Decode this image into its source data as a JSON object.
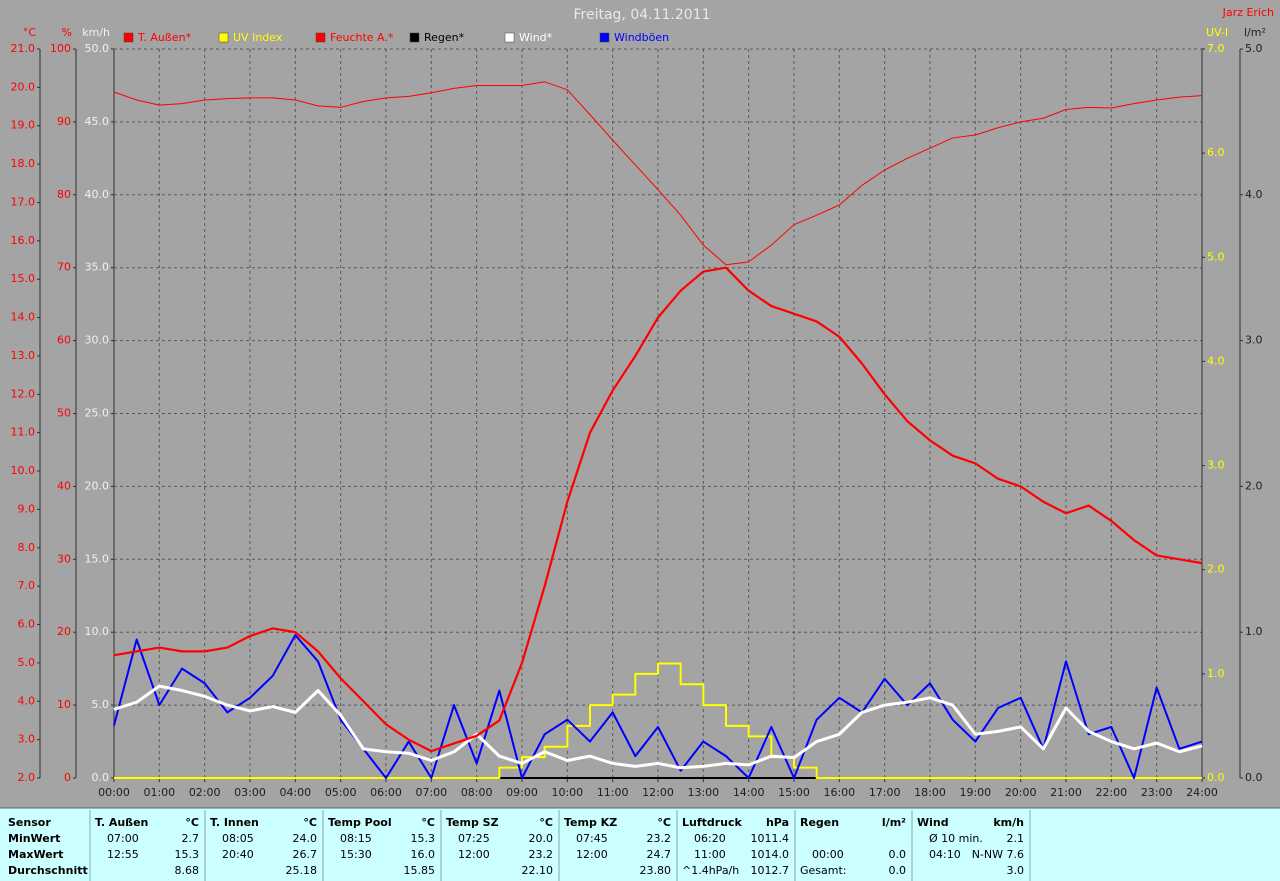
{
  "chart_data": {
    "type": "line",
    "title": "Freitag, 04.11.2011",
    "author": "Jarz Erich",
    "grid": true,
    "x": [
      0,
      0.5,
      1,
      1.5,
      2,
      2.5,
      3,
      3.5,
      4,
      4.5,
      5,
      5.5,
      6,
      6.5,
      7,
      7.5,
      8,
      8.5,
      9,
      9.5,
      10,
      10.5,
      11,
      11.5,
      12,
      12.5,
      13,
      13.5,
      14,
      14.5,
      15,
      15.5,
      16,
      16.5,
      17,
      17.5,
      18,
      18.5,
      19,
      19.5,
      20,
      20.5,
      21,
      21.5,
      22,
      22.5,
      23,
      23.5,
      24
    ],
    "xlim": [
      0,
      24
    ],
    "xticks": [
      {
        "value": 0,
        "label": "00:00"
      },
      {
        "value": 1,
        "label": "01:00"
      },
      {
        "value": 2,
        "label": "02:00"
      },
      {
        "value": 3,
        "label": "03:00"
      },
      {
        "value": 4,
        "label": "04:00"
      },
      {
        "value": 5,
        "label": "05:00"
      },
      {
        "value": 6,
        "label": "06:00"
      },
      {
        "value": 7,
        "label": "07:00"
      },
      {
        "value": 8,
        "label": "08:00"
      },
      {
        "value": 9,
        "label": "09:00"
      },
      {
        "value": 10,
        "label": "10:00"
      },
      {
        "value": 11,
        "label": "11:00"
      },
      {
        "value": 12,
        "label": "12:00"
      },
      {
        "value": 13,
        "label": "13:00"
      },
      {
        "value": 14,
        "label": "14:00"
      },
      {
        "value": 15,
        "label": "15:00"
      },
      {
        "value": 16,
        "label": "16:00"
      },
      {
        "value": 17,
        "label": "17:00"
      },
      {
        "value": 18,
        "label": "18:00"
      },
      {
        "value": 19,
        "label": "19:00"
      },
      {
        "value": 20,
        "label": "20:00"
      },
      {
        "value": 21,
        "label": "21:00"
      },
      {
        "value": 22,
        "label": "22:00"
      },
      {
        "value": 23,
        "label": "23:00"
      },
      {
        "value": 24,
        "label": "24:00"
      }
    ],
    "axes": [
      {
        "unit": "°C",
        "color": "#ff0000",
        "lim": [
          2,
          21
        ],
        "ticks": [
          {
            "value": 2,
            "label": "2.0"
          },
          {
            "value": 3,
            "label": "3.0"
          },
          {
            "value": 4,
            "label": "4.0"
          },
          {
            "value": 5,
            "label": "5.0"
          },
          {
            "value": 6,
            "label": "6.0"
          },
          {
            "value": 7,
            "label": "7.0"
          },
          {
            "value": 8,
            "label": "8.0"
          },
          {
            "value": 9,
            "label": "9.0"
          },
          {
            "value": 10,
            "label": "10.0"
          },
          {
            "value": 11,
            "label": "11.0"
          },
          {
            "value": 12,
            "label": "12.0"
          },
          {
            "value": 13,
            "label": "13.0"
          },
          {
            "value": 14,
            "label": "14.0"
          },
          {
            "value": 15,
            "label": "15.0"
          },
          {
            "value": 16,
            "label": "16.0"
          },
          {
            "value": 17,
            "label": "17.0"
          },
          {
            "value": 18,
            "label": "18.0"
          },
          {
            "value": 19,
            "label": "19.0"
          },
          {
            "value": 20,
            "label": "20.0"
          },
          {
            "value": 21,
            "label": "21.0"
          }
        ]
      },
      {
        "unit": "%",
        "color": "#ff0000",
        "lim": [
          0,
          100
        ],
        "ticks": [
          0,
          10,
          20,
          30,
          40,
          50,
          60,
          70,
          80,
          90,
          100
        ]
      },
      {
        "unit": "km/h",
        "color": "#f0f0f0",
        "lim": [
          0,
          50
        ],
        "ticks": [
          {
            "value": 0,
            "label": "0.0"
          },
          {
            "value": 5,
            "label": "5.0"
          },
          {
            "value": 10,
            "label": "10.0"
          },
          {
            "value": 15,
            "label": "15.0"
          },
          {
            "value": 20,
            "label": "20.0"
          },
          {
            "value": 25,
            "label": "25.0"
          },
          {
            "value": 30,
            "label": "30.0"
          },
          {
            "value": 35,
            "label": "35.0"
          },
          {
            "value": 40,
            "label": "40.0"
          },
          {
            "value": 45,
            "label": "45.0"
          },
          {
            "value": 50,
            "label": "50.0"
          }
        ]
      },
      {
        "unit": "UV-I",
        "color": "#ffff00",
        "lim": [
          0,
          7
        ],
        "ticks": [
          {
            "value": 0,
            "label": "0.0"
          },
          {
            "value": 1,
            "label": "1.0"
          },
          {
            "value": 2,
            "label": "2.0"
          },
          {
            "value": 3,
            "label": "3.0"
          },
          {
            "value": 4,
            "label": "4.0"
          },
          {
            "value": 5,
            "label": "5.0"
          },
          {
            "value": 6,
            "label": "6.0"
          },
          {
            "value": 7,
            "label": "7.0"
          }
        ]
      },
      {
        "unit": "l/m²",
        "color": "#202020",
        "lim": [
          0,
          5
        ],
        "ticks": [
          {
            "value": 0,
            "label": "0.0"
          },
          {
            "value": 1,
            "label": "1.0"
          },
          {
            "value": 2,
            "label": "2.0"
          },
          {
            "value": 3,
            "label": "3.0"
          },
          {
            "value": 4,
            "label": "4.0"
          },
          {
            "value": 5,
            "label": "5.0"
          }
        ]
      }
    ],
    "series": [
      {
        "name": "T. Außen*",
        "color": "#ff0000",
        "axis": 0,
        "values": [
          5.2,
          5.3,
          5.4,
          5.3,
          5.3,
          5.4,
          5.7,
          5.9,
          5.8,
          5.3,
          4.6,
          4.0,
          3.4,
          3.0,
          2.7,
          2.9,
          3.1,
          3.5,
          5.0,
          7.0,
          9.2,
          11.0,
          12.1,
          13.0,
          14.0,
          14.7,
          15.2,
          15.3,
          14.7,
          14.3,
          14.1,
          13.9,
          13.5,
          12.8,
          12.0,
          11.3,
          10.8,
          10.4,
          10.2,
          9.8,
          9.6,
          9.2,
          8.9,
          9.1,
          8.7,
          8.2,
          7.8,
          7.7,
          7.6
        ]
      },
      {
        "name": "UV Index",
        "color": "#ffff00",
        "axis": 3,
        "step": true,
        "values": [
          0,
          0,
          0,
          0,
          0,
          0,
          0,
          0,
          0,
          0,
          0,
          0,
          0,
          0,
          0,
          0,
          0,
          0.1,
          0.2,
          0.3,
          0.5,
          0.7,
          0.8,
          1.0,
          1.1,
          0.9,
          0.7,
          0.5,
          0.4,
          0.2,
          0.1,
          0,
          0,
          0,
          0,
          0,
          0,
          0,
          0,
          0,
          0,
          0,
          0,
          0,
          0,
          0,
          0,
          0,
          0
        ]
      },
      {
        "name": "Feuchte A.*",
        "color": "#ff0000",
        "axis": 1,
        "values": [
          94.1,
          93,
          92.3,
          92.5,
          93,
          93.2,
          93.3,
          93.3,
          93,
          92.2,
          92,
          92.8,
          93.3,
          93.5,
          94,
          94.6,
          95,
          95,
          95,
          95.5,
          94.4,
          91,
          87.5,
          84.1,
          80.7,
          77.2,
          73.1,
          70.4,
          70.8,
          73.1,
          75.9,
          77.2,
          78.6,
          81.3,
          83.4,
          85,
          86.4,
          87.8,
          88.2,
          89.2,
          90,
          90.5,
          91.7,
          92,
          91.9,
          92.5,
          93,
          93.4,
          93.6
        ]
      },
      {
        "name": "Regen*",
        "color": "#000000",
        "axis": 4,
        "values": [
          0,
          0,
          0,
          0,
          0,
          0,
          0,
          0,
          0,
          0,
          0,
          0,
          0,
          0,
          0,
          0,
          0,
          0,
          0,
          0,
          0,
          0,
          0,
          0,
          0,
          0,
          0,
          0,
          0,
          0,
          0,
          0,
          0,
          0,
          0,
          0,
          0,
          0,
          0,
          0,
          0,
          0,
          0,
          0,
          0,
          0,
          0,
          0,
          0
        ]
      },
      {
        "name": "Wind*",
        "color": "#ffffff",
        "axis": 2,
        "values": [
          4.7,
          5.2,
          6.3,
          6.0,
          5.6,
          5.0,
          4.6,
          4.9,
          4.5,
          6.0,
          4.3,
          2.0,
          1.8,
          1.7,
          1.2,
          1.8,
          3.0,
          1.5,
          1.0,
          1.8,
          1.2,
          1.5,
          1.0,
          0.8,
          1.0,
          0.7,
          0.8,
          1.0,
          0.9,
          1.5,
          1.4,
          2.5,
          3.0,
          4.5,
          5.0,
          5.2,
          5.5,
          5.0,
          3.0,
          3.2,
          3.5,
          2.0,
          4.8,
          3.2,
          2.5,
          2.0,
          2.4,
          1.8,
          2.2
        ]
      },
      {
        "name": "Windböen",
        "color": "#0000ff",
        "axis": 2,
        "values": [
          3.6,
          9.5,
          5.0,
          7.5,
          6.5,
          4.5,
          5.5,
          7.0,
          9.8,
          8.0,
          4.0,
          2.0,
          0,
          2.5,
          0,
          5.0,
          1.0,
          6.0,
          0,
          3.0,
          4.0,
          2.5,
          4.5,
          1.5,
          3.5,
          0.5,
          2.5,
          1.5,
          0,
          3.5,
          0,
          4.0,
          5.5,
          4.5,
          6.8,
          5.0,
          6.5,
          4.0,
          2.5,
          4.8,
          5.5,
          2.0,
          8.0,
          3.0,
          3.5,
          0,
          6.2,
          2.0,
          2.5
        ]
      }
    ]
  },
  "stats": {
    "row_labels": [
      "Sensor",
      "MinWert",
      "MaxWert",
      "Durchschnitt"
    ],
    "columns": [
      {
        "name": "T. Außen",
        "unit": "°C",
        "min_time": "07:00",
        "min": "2.7",
        "max_time": "12:55",
        "max": "15.3",
        "avg": "8.68"
      },
      {
        "name": "T. Innen",
        "unit": "°C",
        "min_time": "08:05",
        "min": "24.0",
        "max_time": "20:40",
        "max": "26.7",
        "avg": "25.18"
      },
      {
        "name": "Temp Pool",
        "unit": "°C",
        "min_time": "08:15",
        "min": "15.3",
        "max_time": "15:30",
        "max": "16.0",
        "avg": "15.85"
      },
      {
        "name": "Temp SZ",
        "unit": "°C",
        "min_time": "07:25",
        "min": "20.0",
        "max_time": "12:00",
        "max": "23.2",
        "avg": "22.10"
      },
      {
        "name": "Temp KZ",
        "unit": "°C",
        "min_time": "07:45",
        "min": "23.2",
        "max_time": "12:00",
        "max": "24.7",
        "avg": "23.80"
      },
      {
        "name": "Luftdruck",
        "unit": "hPa",
        "min_time": "06:20",
        "min": "1011.4",
        "max_time": "11:00",
        "max": "1014.0",
        "avg_label": "^1.4hPa/h",
        "avg": "1012.7"
      },
      {
        "name": "Regen",
        "unit": "l/m²",
        "max_time": "00:00",
        "max": "0.0",
        "avg_label": "Gesamt:",
        "avg": "0.0"
      },
      {
        "name": "Wind",
        "unit": "km/h",
        "min_time": "Ø 10 min.",
        "min": "2.1",
        "max_time": "04:10",
        "max": "N-NW 7.6",
        "avg": "3.0"
      }
    ]
  }
}
